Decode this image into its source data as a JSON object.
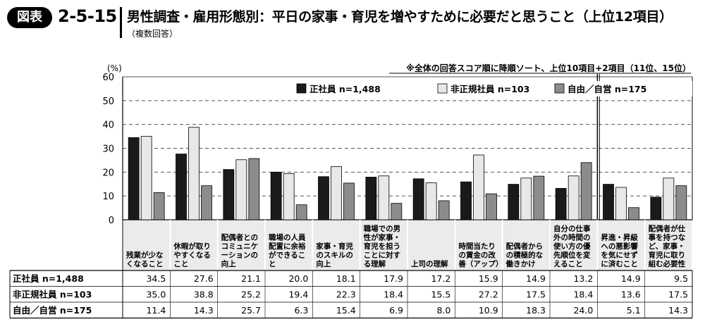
{
  "header": {
    "badge": "図表",
    "number": "2-5-15",
    "title": "男性調査・雇用形態別：平日の家事・育児を増やすために必要だと思うこと（上位12項目）",
    "subtitle": "（複数回答）"
  },
  "chart_data": {
    "type": "bar",
    "ylabel": "(%)",
    "ylim": [
      0,
      60
    ],
    "yticks": [
      "0",
      "10",
      "20",
      "30",
      "40",
      "50",
      "60"
    ],
    "grid": true,
    "legend_position": "top",
    "note": "※全体の回答スコア順に降順ソート、上位10項目+2項目（11位、15位）",
    "categories": [
      [
        "残業が少な",
        "くなること"
      ],
      [
        "休暇が取り",
        "やすくなる",
        "こと"
      ],
      [
        "配偶者との",
        "コミュニケ",
        "ーションの",
        "向上"
      ],
      [
        "職場の人員",
        "配置に余裕",
        "ができるこ",
        "と"
      ],
      [
        "家事・育児",
        "のスキルの",
        "向上"
      ],
      [
        "職場での男",
        "性が家事・",
        "育児を担う",
        "ことに対す",
        "る理解"
      ],
      [
        "上司の理解"
      ],
      [
        "時間当たり",
        "の賃金の改",
        "善（アップ）"
      ],
      [
        "配偶者から",
        "の積極的な",
        "働きかけ"
      ],
      [
        "自分の仕事",
        "外の時間の",
        "使い方の優",
        "先順位を変",
        "えること"
      ],
      [
        "昇進・昇級",
        "への悪影響",
        "を気にせず",
        "に済むこと"
      ],
      [
        "配偶者が仕",
        "事を持つな",
        "ど、家事・",
        "育児に取り",
        "組む必要性"
      ]
    ],
    "series": [
      {
        "name": "正社員 n=1,488",
        "color": "#1a1a1a",
        "values": [
          34.5,
          27.6,
          21.1,
          20.0,
          18.1,
          17.9,
          17.2,
          15.9,
          14.9,
          13.2,
          14.9,
          9.5
        ],
        "labels": [
          "34.5",
          "27.6",
          "21.1",
          "20.0",
          "18.1",
          "17.9",
          "17.2",
          "15.9",
          "14.9",
          "13.2",
          "14.9",
          "9.5"
        ]
      },
      {
        "name": "非正規社員 n=103",
        "color": "#e8e8e8",
        "values": [
          35.0,
          38.8,
          25.2,
          19.4,
          22.3,
          18.4,
          15.5,
          27.2,
          17.5,
          18.4,
          13.6,
          17.5
        ],
        "labels": [
          "35.0",
          "38.8",
          "25.2",
          "19.4",
          "22.3",
          "18.4",
          "15.5",
          "27.2",
          "17.5",
          "18.4",
          "13.6",
          "17.5"
        ]
      },
      {
        "name": "自由／自営 n=175",
        "color": "#8c8c8c",
        "values": [
          11.4,
          14.3,
          25.7,
          6.3,
          15.4,
          6.9,
          8.0,
          10.9,
          18.3,
          24.0,
          5.1,
          14.3
        ],
        "labels": [
          "11.4",
          "14.3",
          "25.7",
          "6.3",
          "15.4",
          "6.9",
          "8.0",
          "10.9",
          "18.3",
          "24.0",
          "5.1",
          "14.3"
        ]
      }
    ]
  }
}
